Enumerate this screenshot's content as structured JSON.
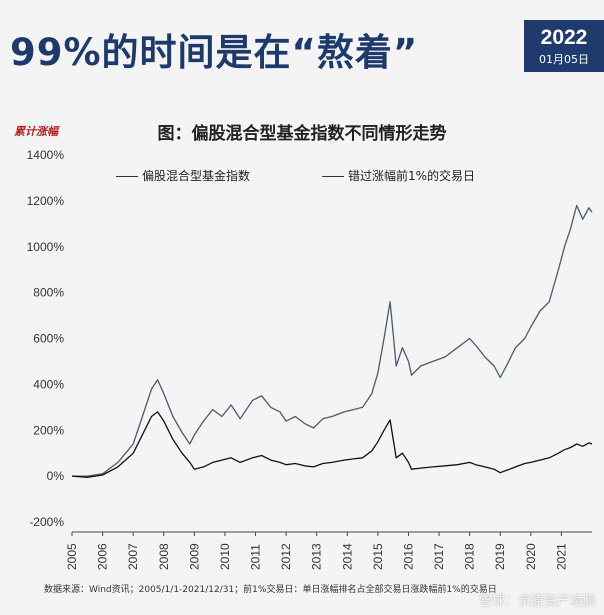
{
  "header": {
    "headline": "99%的时间是在“熬着”",
    "badge_year": "2022",
    "badge_date": "01月05日"
  },
  "chart_data": {
    "type": "line",
    "title": "图：偏股混合型基金指数不同情形走势",
    "ylabel": "累计涨幅",
    "xlabel": "",
    "ylim": [
      -200,
      1400
    ],
    "yticks": [
      "-200%",
      "0%",
      "200%",
      "400%",
      "600%",
      "800%",
      "1000%",
      "1200%",
      "1400%"
    ],
    "xticks": [
      "2005",
      "2006",
      "2007",
      "2008",
      "2009",
      "2010",
      "2011",
      "2012",
      "2013",
      "2014",
      "2015",
      "2016",
      "2017",
      "2018",
      "2019",
      "2020",
      "2021"
    ],
    "xlim": [
      2005.0,
      2022.0
    ],
    "legend_position": "top",
    "series": [
      {
        "name": "偏股混合型基金指数",
        "x": [
          2005.0,
          2005.5,
          2006.0,
          2006.5,
          2007.0,
          2007.3,
          2007.6,
          2007.8,
          2008.0,
          2008.3,
          2008.6,
          2008.85,
          2009.0,
          2009.3,
          2009.6,
          2009.9,
          2010.2,
          2010.5,
          2010.9,
          2011.2,
          2011.5,
          2011.8,
          2012.0,
          2012.3,
          2012.6,
          2012.9,
          2013.2,
          2013.5,
          2013.9,
          2014.2,
          2014.5,
          2014.8,
          2015.0,
          2015.2,
          2015.4,
          2015.5,
          2015.6,
          2015.8,
          2016.0,
          2016.1,
          2016.4,
          2016.8,
          2017.2,
          2017.6,
          2018.0,
          2018.2,
          2018.5,
          2018.8,
          2019.0,
          2019.2,
          2019.5,
          2019.8,
          2020.0,
          2020.3,
          2020.6,
          2020.9,
          2021.1,
          2021.3,
          2021.5,
          2021.7,
          2021.9,
          2022.0
        ],
        "y": [
          0,
          0,
          10,
          60,
          140,
          260,
          380,
          420,
          360,
          260,
          190,
          140,
          180,
          240,
          290,
          260,
          310,
          250,
          330,
          350,
          300,
          280,
          240,
          260,
          230,
          210,
          250,
          260,
          280,
          290,
          300,
          360,
          450,
          600,
          760,
          620,
          480,
          560,
          500,
          440,
          480,
          500,
          520,
          560,
          600,
          570,
          520,
          480,
          430,
          480,
          560,
          600,
          650,
          720,
          760,
          900,
          1000,
          1080,
          1180,
          1120,
          1170,
          1150
        ]
      },
      {
        "name": "错过涨幅前1%的交易日",
        "x": [
          2005.0,
          2005.5,
          2006.0,
          2006.5,
          2007.0,
          2007.3,
          2007.6,
          2007.8,
          2008.0,
          2008.3,
          2008.6,
          2008.85,
          2009.0,
          2009.3,
          2009.6,
          2009.9,
          2010.2,
          2010.5,
          2010.9,
          2011.2,
          2011.5,
          2011.8,
          2012.0,
          2012.3,
          2012.6,
          2012.9,
          2013.2,
          2013.5,
          2013.9,
          2014.2,
          2014.5,
          2014.8,
          2015.0,
          2015.2,
          2015.4,
          2015.5,
          2015.6,
          2015.8,
          2016.0,
          2016.1,
          2016.4,
          2016.8,
          2017.2,
          2017.6,
          2018.0,
          2018.2,
          2018.5,
          2018.8,
          2019.0,
          2019.2,
          2019.5,
          2019.8,
          2020.0,
          2020.3,
          2020.6,
          2020.9,
          2021.1,
          2021.3,
          2021.5,
          2021.7,
          2021.9,
          2022.0
        ],
        "y": [
          0,
          -5,
          5,
          40,
          100,
          180,
          260,
          280,
          240,
          160,
          100,
          60,
          30,
          40,
          60,
          70,
          80,
          60,
          80,
          90,
          70,
          60,
          50,
          55,
          45,
          40,
          55,
          60,
          70,
          75,
          80,
          110,
          150,
          200,
          245,
          160,
          80,
          100,
          60,
          30,
          35,
          40,
          45,
          50,
          60,
          50,
          40,
          30,
          15,
          25,
          40,
          55,
          60,
          70,
          80,
          100,
          115,
          125,
          140,
          130,
          145,
          140
        ]
      }
    ]
  },
  "footer": {
    "source": "数据来源：Wind资讯；2005/1/1-2021/12/31；前1%交易日：单日涨幅排名占全部交易日涨跌幅前1%的交易日",
    "watermark": "雪球：京原资产凌鹏"
  }
}
